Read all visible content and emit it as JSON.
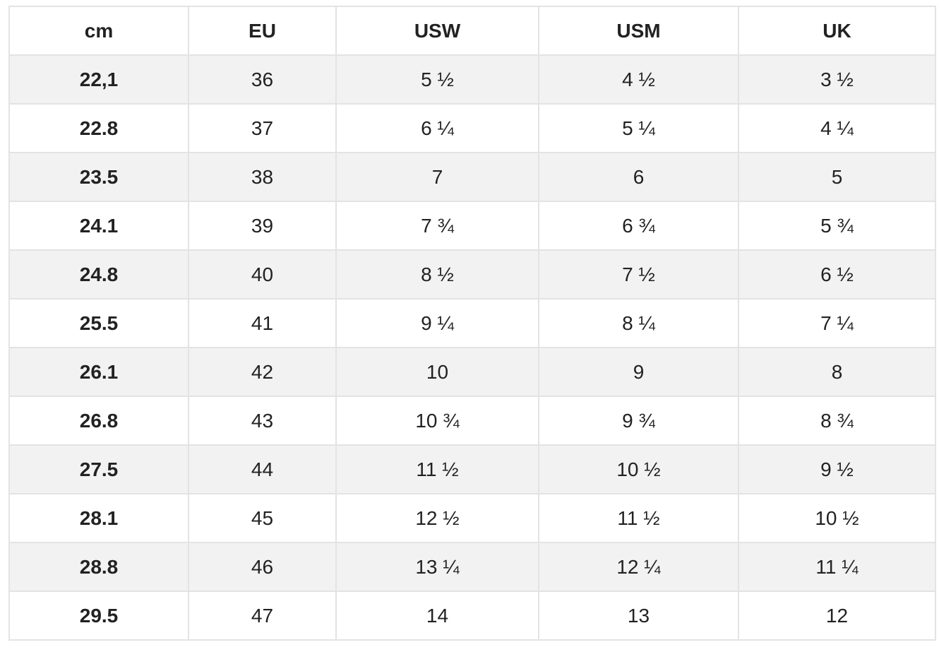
{
  "table": {
    "headers": [
      "cm",
      "EU",
      "USW",
      "USM",
      "UK"
    ],
    "rows": [
      [
        "22,1",
        "36",
        "5 ½",
        "4 ½",
        "3 ½"
      ],
      [
        "22.8",
        "37",
        "6 ¼",
        "5 ¼",
        "4 ¼"
      ],
      [
        "23.5",
        "38",
        "7",
        "6",
        "5"
      ],
      [
        "24.1",
        "39",
        "7 ¾",
        "6 ¾",
        "5 ¾"
      ],
      [
        "24.8",
        "40",
        "8 ½",
        "7 ½",
        "6 ½"
      ],
      [
        "25.5",
        "41",
        "9 ¼",
        "8 ¼",
        "7 ¼"
      ],
      [
        "26.1",
        "42",
        "10",
        "9",
        "8"
      ],
      [
        "26.8",
        "43",
        "10 ¾",
        "9 ¾",
        "8 ¾"
      ],
      [
        "27.5",
        "44",
        "11 ½",
        "10 ½",
        "9 ½"
      ],
      [
        "28.1",
        "45",
        "12 ½",
        "11 ½",
        "10 ½"
      ],
      [
        "28.8",
        "46",
        "13 ¼",
        "12 ¼",
        "11 ¼"
      ],
      [
        "29.5",
        "47",
        "14",
        "13",
        "12"
      ]
    ]
  },
  "colors": {
    "border": "#e3e3e3",
    "stripe": "#f2f2f2",
    "text": "#222222"
  }
}
